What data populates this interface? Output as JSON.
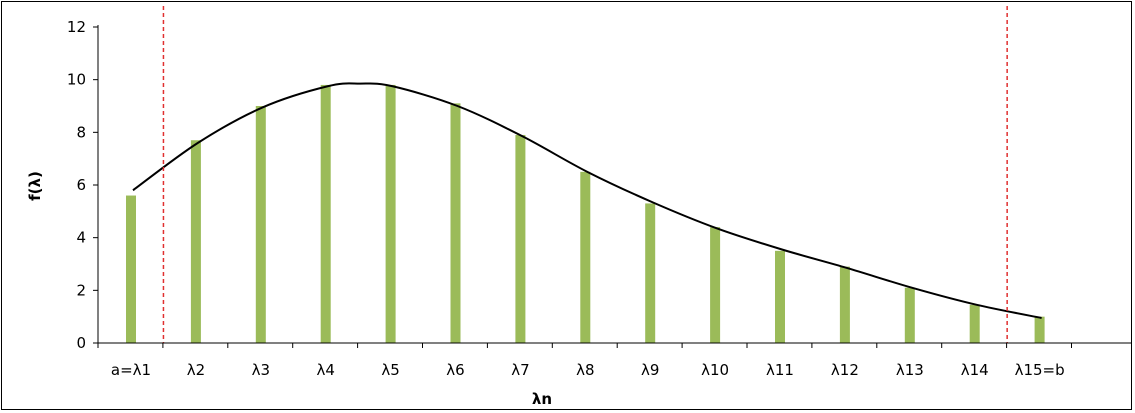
{
  "chart_data": {
    "type": "bar",
    "xlabel": "λn",
    "ylabel": "f(λ)",
    "categories": [
      "a=λ1",
      "λ2",
      "λ3",
      "λ4",
      "λ5",
      "λ6",
      "λ7",
      "λ8",
      "λ9",
      "λ10",
      "λ11",
      "λ12",
      "λ13",
      "λ14",
      "λ15=b"
    ],
    "values": [
      5.6,
      7.7,
      9.0,
      9.8,
      9.8,
      9.1,
      7.9,
      6.5,
      5.3,
      4.4,
      3.5,
      2.9,
      2.1,
      1.45,
      1.0
    ],
    "curve": {
      "x": [
        0,
        1,
        2,
        3,
        3.5,
        4,
        5,
        6,
        7,
        8,
        9,
        10,
        11,
        12,
        13,
        14
      ],
      "y": [
        5.8,
        7.6,
        8.95,
        9.75,
        9.85,
        9.75,
        9.0,
        7.85,
        6.5,
        5.35,
        4.35,
        3.55,
        2.85,
        2.1,
        1.45,
        0.95
      ]
    },
    "boundary_lines_x": [
      0.5,
      13.5
    ],
    "ylim": [
      0,
      12
    ],
    "yticks": [
      0,
      2,
      4,
      6,
      8,
      10,
      12
    ],
    "grid": false,
    "legend": "none",
    "colors": {
      "bar": "#9bbb59",
      "curve": "#000000",
      "boundary": "#e03030",
      "axis": "#000000"
    }
  }
}
